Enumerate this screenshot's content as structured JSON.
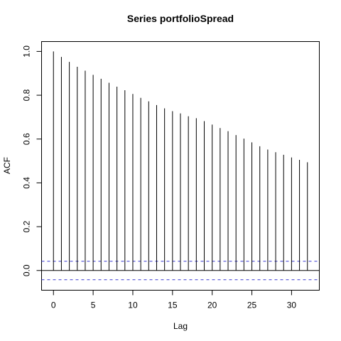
{
  "chart_data": {
    "type": "bar",
    "title": "Series  portfolioSpread",
    "xlabel": "Lag",
    "ylabel": "ACF",
    "xlim": [
      -1.5,
      33.5
    ],
    "ylim": [
      -0.09,
      1.045
    ],
    "xticks": [
      0,
      5,
      10,
      15,
      20,
      25,
      30
    ],
    "yticks": [
      0.0,
      0.2,
      0.4,
      0.6,
      0.8,
      1.0
    ],
    "ytick_labels": [
      "0.0",
      "0.2",
      "0.4",
      "0.6",
      "0.8",
      "1.0"
    ],
    "grid": false,
    "lags": [
      0,
      1,
      2,
      3,
      4,
      5,
      6,
      7,
      8,
      9,
      10,
      11,
      12,
      13,
      14,
      15,
      16,
      17,
      18,
      19,
      20,
      21,
      22,
      23,
      24,
      25,
      26,
      27,
      28,
      29,
      30,
      31,
      32
    ],
    "acf": [
      1.0,
      0.975,
      0.952,
      0.93,
      0.912,
      0.893,
      0.875,
      0.857,
      0.839,
      0.823,
      0.806,
      0.788,
      0.772,
      0.755,
      0.74,
      0.727,
      0.717,
      0.704,
      0.695,
      0.682,
      0.666,
      0.65,
      0.636,
      0.618,
      0.602,
      0.585,
      0.567,
      0.552,
      0.54,
      0.528,
      0.516,
      0.505,
      0.494
    ],
    "confidence_band": [
      -0.042,
      0.042
    ],
    "colors": {
      "spike": "#000000",
      "confidence": "#3a3ad0",
      "axis": "#000000"
    }
  }
}
